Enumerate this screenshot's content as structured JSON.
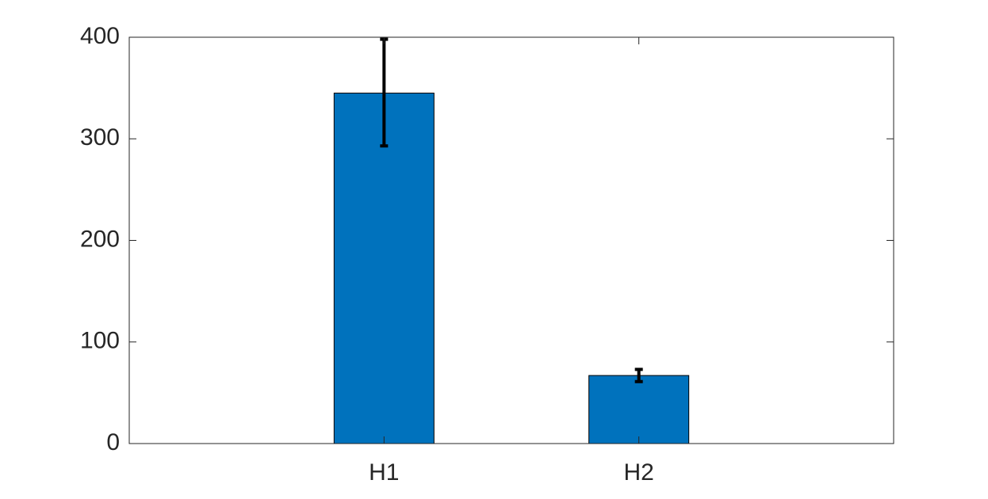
{
  "chart_data": {
    "type": "bar",
    "categories": [
      "H1",
      "H2"
    ],
    "values": [
      345,
      67
    ],
    "error_low": [
      293,
      61
    ],
    "error_high": [
      398,
      73
    ],
    "ylim": [
      0,
      400
    ],
    "yticks": [
      0,
      100,
      200,
      300,
      400
    ],
    "ytick_labels": [
      "0",
      "100",
      "200",
      "300",
      "400"
    ],
    "xlabel": "",
    "ylabel": "",
    "title": "",
    "grid": false,
    "legend": "none",
    "bar_color": "#0072BD",
    "error_bar_color": "#000000"
  }
}
